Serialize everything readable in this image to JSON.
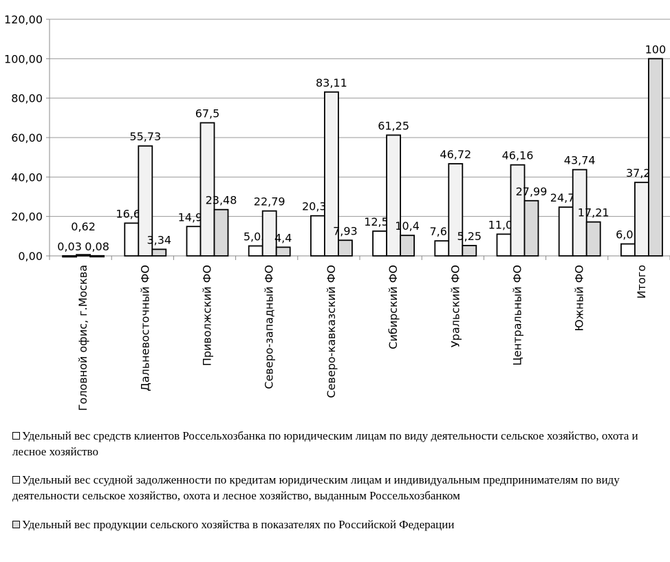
{
  "chart_data": {
    "type": "bar",
    "title": "",
    "xlabel": "",
    "ylabel": "",
    "ylim": [
      0,
      120
    ],
    "yticks": [
      "0,00",
      "20,00",
      "40,00",
      "60,00",
      "80,00",
      "100,00",
      "120,00"
    ],
    "grid": true,
    "legend_position": "bottom",
    "categories": [
      "Головной офис,  г.Москва",
      "Дальневосточный ФО",
      "Приволжский ФО",
      "Северо-западный ФО",
      "Северо-кавказский ФО",
      "Сибирский ФО",
      "Уральский ФО",
      "Центральный ФО",
      "Южный ФО",
      "Итого"
    ],
    "series": [
      {
        "name": "Удельный вес средств клиентов Россельхозбанка по юридическим лицам по виду деятельности сельское хозяйство, охота и лесное хозяйство",
        "color": "#ffffff",
        "values": [
          0.03,
          16.61,
          14.91,
          5.05,
          20.33,
          12.56,
          7.61,
          11.02,
          24.72,
          6.07
        ],
        "labels": [
          "0,03",
          "16,61",
          "14,91",
          "5,05",
          "20,33",
          "12,56",
          "7,61",
          "11,02",
          "24,72",
          "6,07"
        ]
      },
      {
        "name": "Удельный вес ссудной задолженности по кредитам юридическим лицам и индивидуальным предпринимателям  по виду деятельности сельское хозяйство, охота и лесное хозяйство, выданным Россельхозбанком",
        "color": "#f2f2f2",
        "values": [
          0.62,
          55.73,
          67.5,
          22.79,
          83.11,
          61.25,
          46.72,
          46.16,
          43.74,
          37.26
        ],
        "labels": [
          "0,62",
          "55,73",
          "67,5",
          "22,79",
          "83,11",
          "61,25",
          "46,72",
          "46,16",
          "43,74",
          "37,26"
        ]
      },
      {
        "name": "Удельный вес продукции сельского хозяйства в показателях по Российской Федерации",
        "color": "#d9d9d9",
        "values": [
          0.08,
          3.34,
          23.48,
          4.4,
          7.93,
          10.4,
          5.25,
          27.99,
          17.21,
          100
        ],
        "labels": [
          "0,08",
          "3,34",
          "23,48",
          "4,4",
          "7,93",
          "10,4",
          "5,25",
          "27,99",
          "17,21",
          "100"
        ]
      }
    ]
  }
}
